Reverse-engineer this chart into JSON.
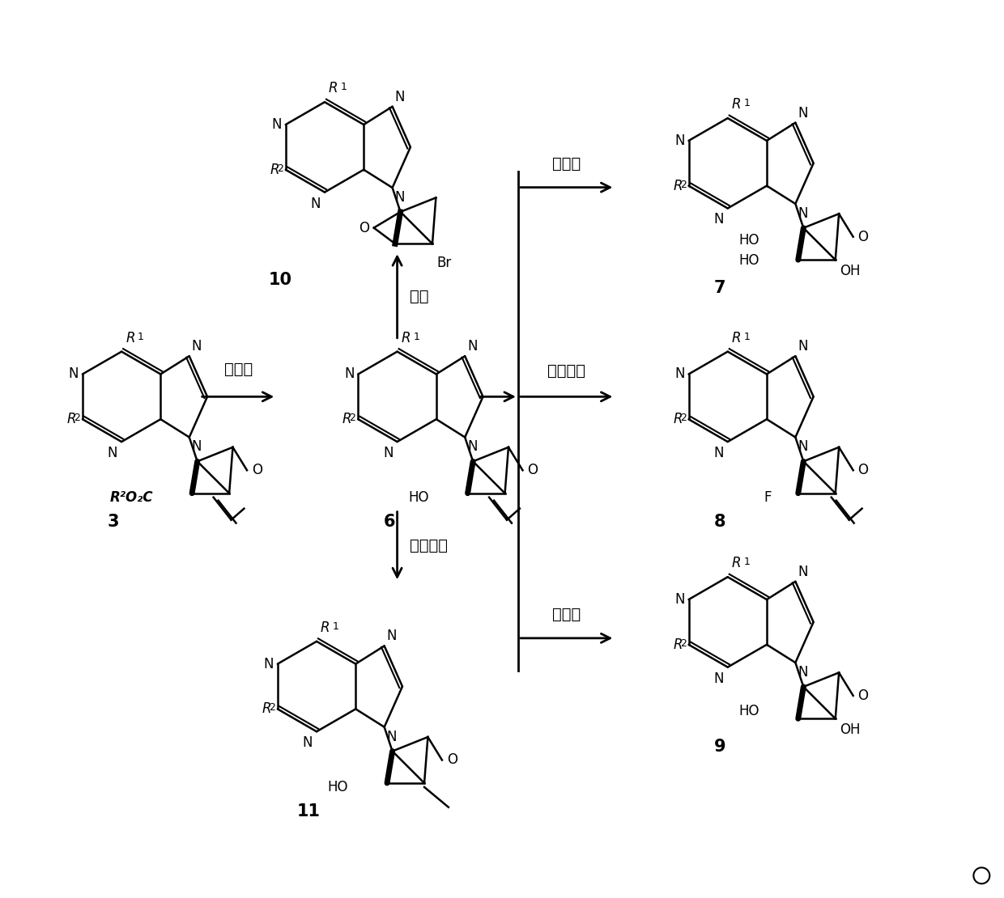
{
  "background_color": "#ffffff",
  "fig_width": 12.4,
  "fig_height": 11.1,
  "dpi": 100,
  "label_3": "3",
  "label_6": "6",
  "label_7": "7",
  "label_8": "8",
  "label_9": "9",
  "label_10": "10",
  "label_11": "11",
  "cn_huanyuanji": "还原剂",
  "cn_xiuhua": "溃化",
  "cn_shuangjinghua": "双羟化",
  "cn_fuhuashiji": "氟化试剂",
  "cn_jingjihua": "羟基化",
  "cn_qinghuahuanyuan": "氢化还原",
  "circle_marker": "○"
}
